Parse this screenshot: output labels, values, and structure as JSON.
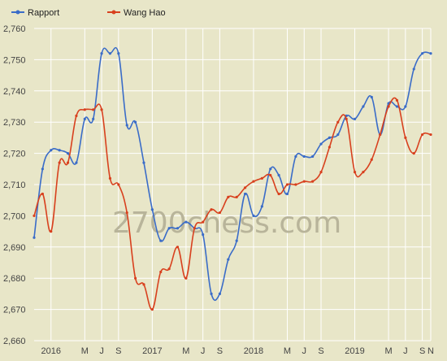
{
  "watermark": "2700chess.com",
  "colors": {
    "background": "#e8e6c8",
    "grid": "#ffffff",
    "Rapport": "#3a6cc8",
    "Wang Hao": "#d8401e"
  },
  "chart_data": {
    "type": "line",
    "ylim": [
      2660,
      2760
    ],
    "yticks": [
      2660,
      2670,
      2680,
      2690,
      2700,
      2710,
      2720,
      2730,
      2740,
      2750,
      2760
    ],
    "ytick_labels": [
      "2,660",
      "2,670",
      "2,680",
      "2,690",
      "2,700",
      "2,710",
      "2,720",
      "2,730",
      "2,740",
      "2,750",
      "2,760"
    ],
    "xlim": [
      0,
      47
    ],
    "xticks": [
      2,
      6,
      8,
      10,
      14,
      18,
      20,
      22,
      26,
      30,
      32,
      34,
      38,
      42,
      44,
      46,
      47
    ],
    "xtick_labels": [
      "2016",
      "M",
      "J",
      "S",
      "2017",
      "M",
      "J",
      "S",
      "2018",
      "M",
      "J",
      "S",
      "2019",
      "M",
      "J",
      "S",
      "N"
    ],
    "legend_position": "top-left",
    "grid": true,
    "series": [
      {
        "name": "Rapport",
        "x": [
          0,
          1,
          2,
          3,
          4,
          5,
          6,
          7,
          8,
          9,
          10,
          11,
          12,
          13,
          14,
          15,
          16,
          17,
          18,
          19,
          20,
          21,
          22,
          23,
          24,
          25,
          26,
          27,
          28,
          29,
          30,
          31,
          32,
          33,
          34,
          35,
          36,
          37,
          38,
          39,
          40,
          41,
          42,
          43,
          44,
          45,
          46,
          47
        ],
        "values": [
          2693,
          2715,
          2721,
          2721,
          2720,
          2717,
          2731,
          2731,
          2752,
          2752,
          2752,
          2729,
          2730,
          2717,
          2702,
          2692,
          2696,
          2696,
          2698,
          2696,
          2694,
          2675,
          2675,
          2686,
          2692,
          2707,
          2700,
          2703,
          2715,
          2713,
          2707,
          2719,
          2719,
          2719,
          2723,
          2725,
          2726,
          2732,
          2731,
          2735,
          2738,
          2726,
          2736,
          2735,
          2735,
          2747,
          2752,
          2752
        ]
      },
      {
        "name": "Wang Hao",
        "x": [
          0,
          1,
          2,
          3,
          4,
          5,
          6,
          7,
          8,
          9,
          10,
          11,
          12,
          13,
          14,
          15,
          16,
          17,
          18,
          19,
          20,
          21,
          22,
          23,
          24,
          25,
          26,
          27,
          28,
          29,
          30,
          31,
          32,
          33,
          34,
          35,
          36,
          37,
          38,
          39,
          40,
          41,
          42,
          43,
          44,
          45,
          46,
          47
        ],
        "values": [
          2700,
          2707,
          2695,
          2717,
          2717,
          2732,
          2734,
          2734,
          2734,
          2712,
          2710,
          2701,
          2680,
          2678,
          2670,
          2682,
          2683,
          2690,
          2680,
          2696,
          2698,
          2702,
          2701,
          2706,
          2706,
          2709,
          2711,
          2712,
          2713,
          2707,
          2710,
          2710,
          2711,
          2711,
          2714,
          2722,
          2730,
          2731,
          2714,
          2714,
          2718,
          2726,
          2735,
          2737,
          2725,
          2720,
          2726,
          2726
        ]
      }
    ]
  }
}
